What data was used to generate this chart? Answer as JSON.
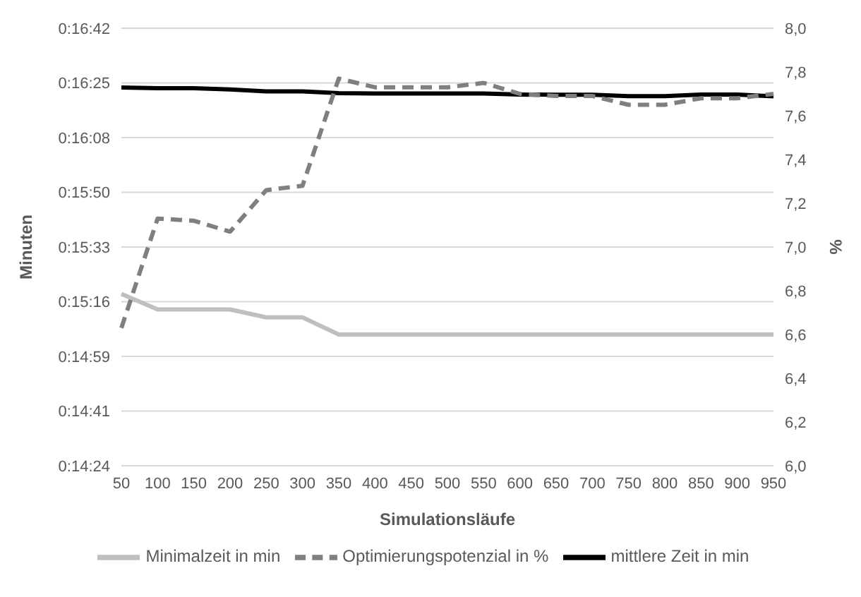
{
  "chart_data": {
    "type": "line",
    "xlabel": "Simulationsläufe",
    "ylabel": "Minuten",
    "y2label": "%",
    "categories": [
      "50",
      "100",
      "150",
      "200",
      "250",
      "300",
      "350",
      "400",
      "450",
      "500",
      "550",
      "600",
      "650",
      "700",
      "750",
      "800",
      "850",
      "900",
      "950"
    ],
    "series": [
      {
        "name": "Minimalzeit in min",
        "color": "#bfbfbf",
        "line_style": "solid",
        "values": [
          918.2,
          913.3,
          913.3,
          913.3,
          910.8,
          910.8,
          905.4,
          905.4,
          905.4,
          905.4,
          905.4,
          905.4,
          905.4,
          905.4,
          905.4,
          905.4,
          905.4,
          905.4,
          905.4
        ]
      },
      {
        "name": "mittlere Zeit in min",
        "color": "#000000",
        "line_style": "solid",
        "values": [
          983.3,
          983.1,
          983.1,
          982.7,
          982.1,
          982.1,
          981.5,
          981.4,
          981.4,
          981.4,
          981.4,
          981.1,
          981.0,
          981.0,
          980.6,
          980.6,
          981.1,
          981.1,
          980.5
        ]
      },
      {
        "name": "Optimierungspotenzial in %",
        "color": "#7f7f7f",
        "line_style": "dashed",
        "axis": "y2",
        "values": [
          6.63,
          7.13,
          7.12,
          7.07,
          7.26,
          7.28,
          7.77,
          7.73,
          7.73,
          7.73,
          7.75,
          7.7,
          7.69,
          7.69,
          7.65,
          7.65,
          7.68,
          7.68,
          7.7
        ]
      }
    ],
    "ylim": [
      864,
      1002
    ],
    "yticks": [
      {
        "value": 864,
        "label": "0:14:24"
      },
      {
        "value": 881.25,
        "label": "0:14:41"
      },
      {
        "value": 898.5,
        "label": "0:14:59"
      },
      {
        "value": 915.75,
        "label": "0:15:16"
      },
      {
        "value": 933,
        "label": "0:15:33"
      },
      {
        "value": 950.25,
        "label": "0:15:50"
      },
      {
        "value": 967.5,
        "label": "0:16:08"
      },
      {
        "value": 984.75,
        "label": "0:16:25"
      },
      {
        "value": 1002,
        "label": "0:16:42"
      }
    ],
    "y2lim": [
      6,
      8
    ],
    "y2ticks": [
      {
        "value": 6,
        "label": "6,0"
      },
      {
        "value": 6.2,
        "label": "6,2"
      },
      {
        "value": 6.4,
        "label": "6,4"
      },
      {
        "value": 6.6,
        "label": "6,6"
      },
      {
        "value": 6.8,
        "label": "6,8"
      },
      {
        "value": 7,
        "label": "7,0"
      },
      {
        "value": 7.2,
        "label": "7,2"
      },
      {
        "value": 7.4,
        "label": "7,4"
      },
      {
        "value": 7.6,
        "label": "7,6"
      },
      {
        "value": 7.8,
        "label": "7,8"
      },
      {
        "value": 8,
        "label": "8,0"
      }
    ],
    "grid": "y",
    "legend": "bottom",
    "marker": "none"
  }
}
